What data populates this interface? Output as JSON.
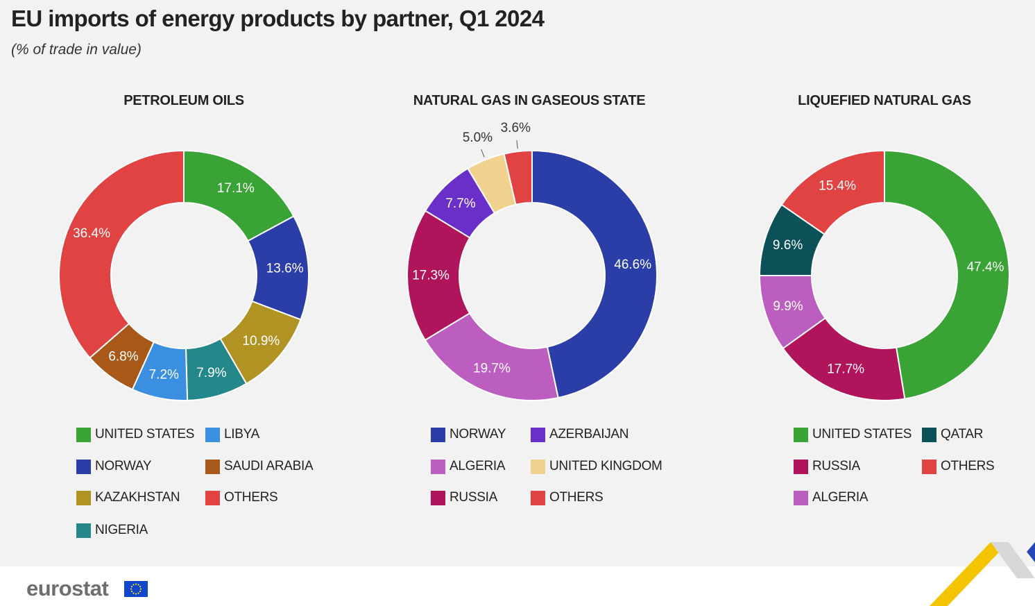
{
  "title": "EU imports of energy products by partner, Q1 2024",
  "subtitle": "(% of trade in value)",
  "footer": {
    "brand": "eurostat"
  },
  "colors": {
    "background": "#f2f2f2",
    "united_states": "#3aa335",
    "norway": "#2b3ea8",
    "kazakhstan": "#b09322",
    "nigeria": "#24888a",
    "libya": "#3b8fe0",
    "saudi_arabia": "#a85818",
    "others": "#e04342",
    "algeria": "#bc5ec0",
    "russia": "#b0145a",
    "azerbaijan": "#6a2fc8",
    "united_kingdom": "#f0d28e",
    "qatar": "#0c5158"
  },
  "chart_data": [
    {
      "type": "pie",
      "title": "PETROLEUM OILS",
      "slices": [
        {
          "label": "UNITED STATES",
          "value": 17.1,
          "display": "17.1%",
          "color": "#3aa335"
        },
        {
          "label": "NORWAY",
          "value": 13.6,
          "display": "13.6%",
          "color": "#2b3ea8"
        },
        {
          "label": "KAZAKHSTAN",
          "value": 10.9,
          "display": "10.9%",
          "color": "#b09322"
        },
        {
          "label": "NIGERIA",
          "value": 7.9,
          "display": "7.9%",
          "color": "#24888a"
        },
        {
          "label": "LIBYA",
          "value": 7.2,
          "display": "7.2%",
          "color": "#3b8fe0"
        },
        {
          "label": "SAUDI ARABIA",
          "value": 6.8,
          "display": "6.8%",
          "color": "#a85818"
        },
        {
          "label": "OTHERS",
          "value": 36.4,
          "display": "36.4%",
          "color": "#e04342"
        }
      ],
      "legend": [
        "UNITED STATES",
        "LIBYA",
        "NORWAY",
        "SAUDI ARABIA",
        "KAZAKHSTAN",
        "OTHERS",
        "NIGERIA"
      ]
    },
    {
      "type": "pie",
      "title": "NATURAL GAS IN GASEOUS STATE",
      "slices": [
        {
          "label": "NORWAY",
          "value": 46.6,
          "display": "46.6%",
          "color": "#2b3ea8"
        },
        {
          "label": "ALGERIA",
          "value": 19.7,
          "display": "19.7%",
          "color": "#bc5ec0"
        },
        {
          "label": "RUSSIA",
          "value": 17.3,
          "display": "17.3%",
          "color": "#b0145a"
        },
        {
          "label": "AZERBAIJAN",
          "value": 7.7,
          "display": "7.7%",
          "color": "#6a2fc8"
        },
        {
          "label": "UNITED KINGDOM",
          "value": 5.0,
          "display": "5.0%",
          "color": "#f0d28e"
        },
        {
          "label": "OTHERS",
          "value": 3.6,
          "display": "3.6%",
          "color": "#e04342"
        }
      ],
      "legend": [
        "NORWAY",
        "AZERBAIJAN",
        "ALGERIA",
        "UNITED KINGDOM",
        "RUSSIA",
        "OTHERS"
      ]
    },
    {
      "type": "pie",
      "title": "LIQUEFIED NATURAL GAS",
      "slices": [
        {
          "label": "UNITED STATES",
          "value": 47.4,
          "display": "47.4%",
          "color": "#3aa335"
        },
        {
          "label": "RUSSIA",
          "value": 17.7,
          "display": "17.7%",
          "color": "#b0145a"
        },
        {
          "label": "ALGERIA",
          "value": 9.9,
          "display": "9.9%",
          "color": "#bc5ec0"
        },
        {
          "label": "QATAR",
          "value": 9.6,
          "display": "9.6%",
          "color": "#0c5158"
        },
        {
          "label": "OTHERS",
          "value": 15.4,
          "display": "15.4%",
          "color": "#e04342"
        }
      ],
      "legend": [
        "UNITED STATES",
        "QATAR",
        "RUSSIA",
        "OTHERS",
        "ALGERIA"
      ]
    }
  ]
}
